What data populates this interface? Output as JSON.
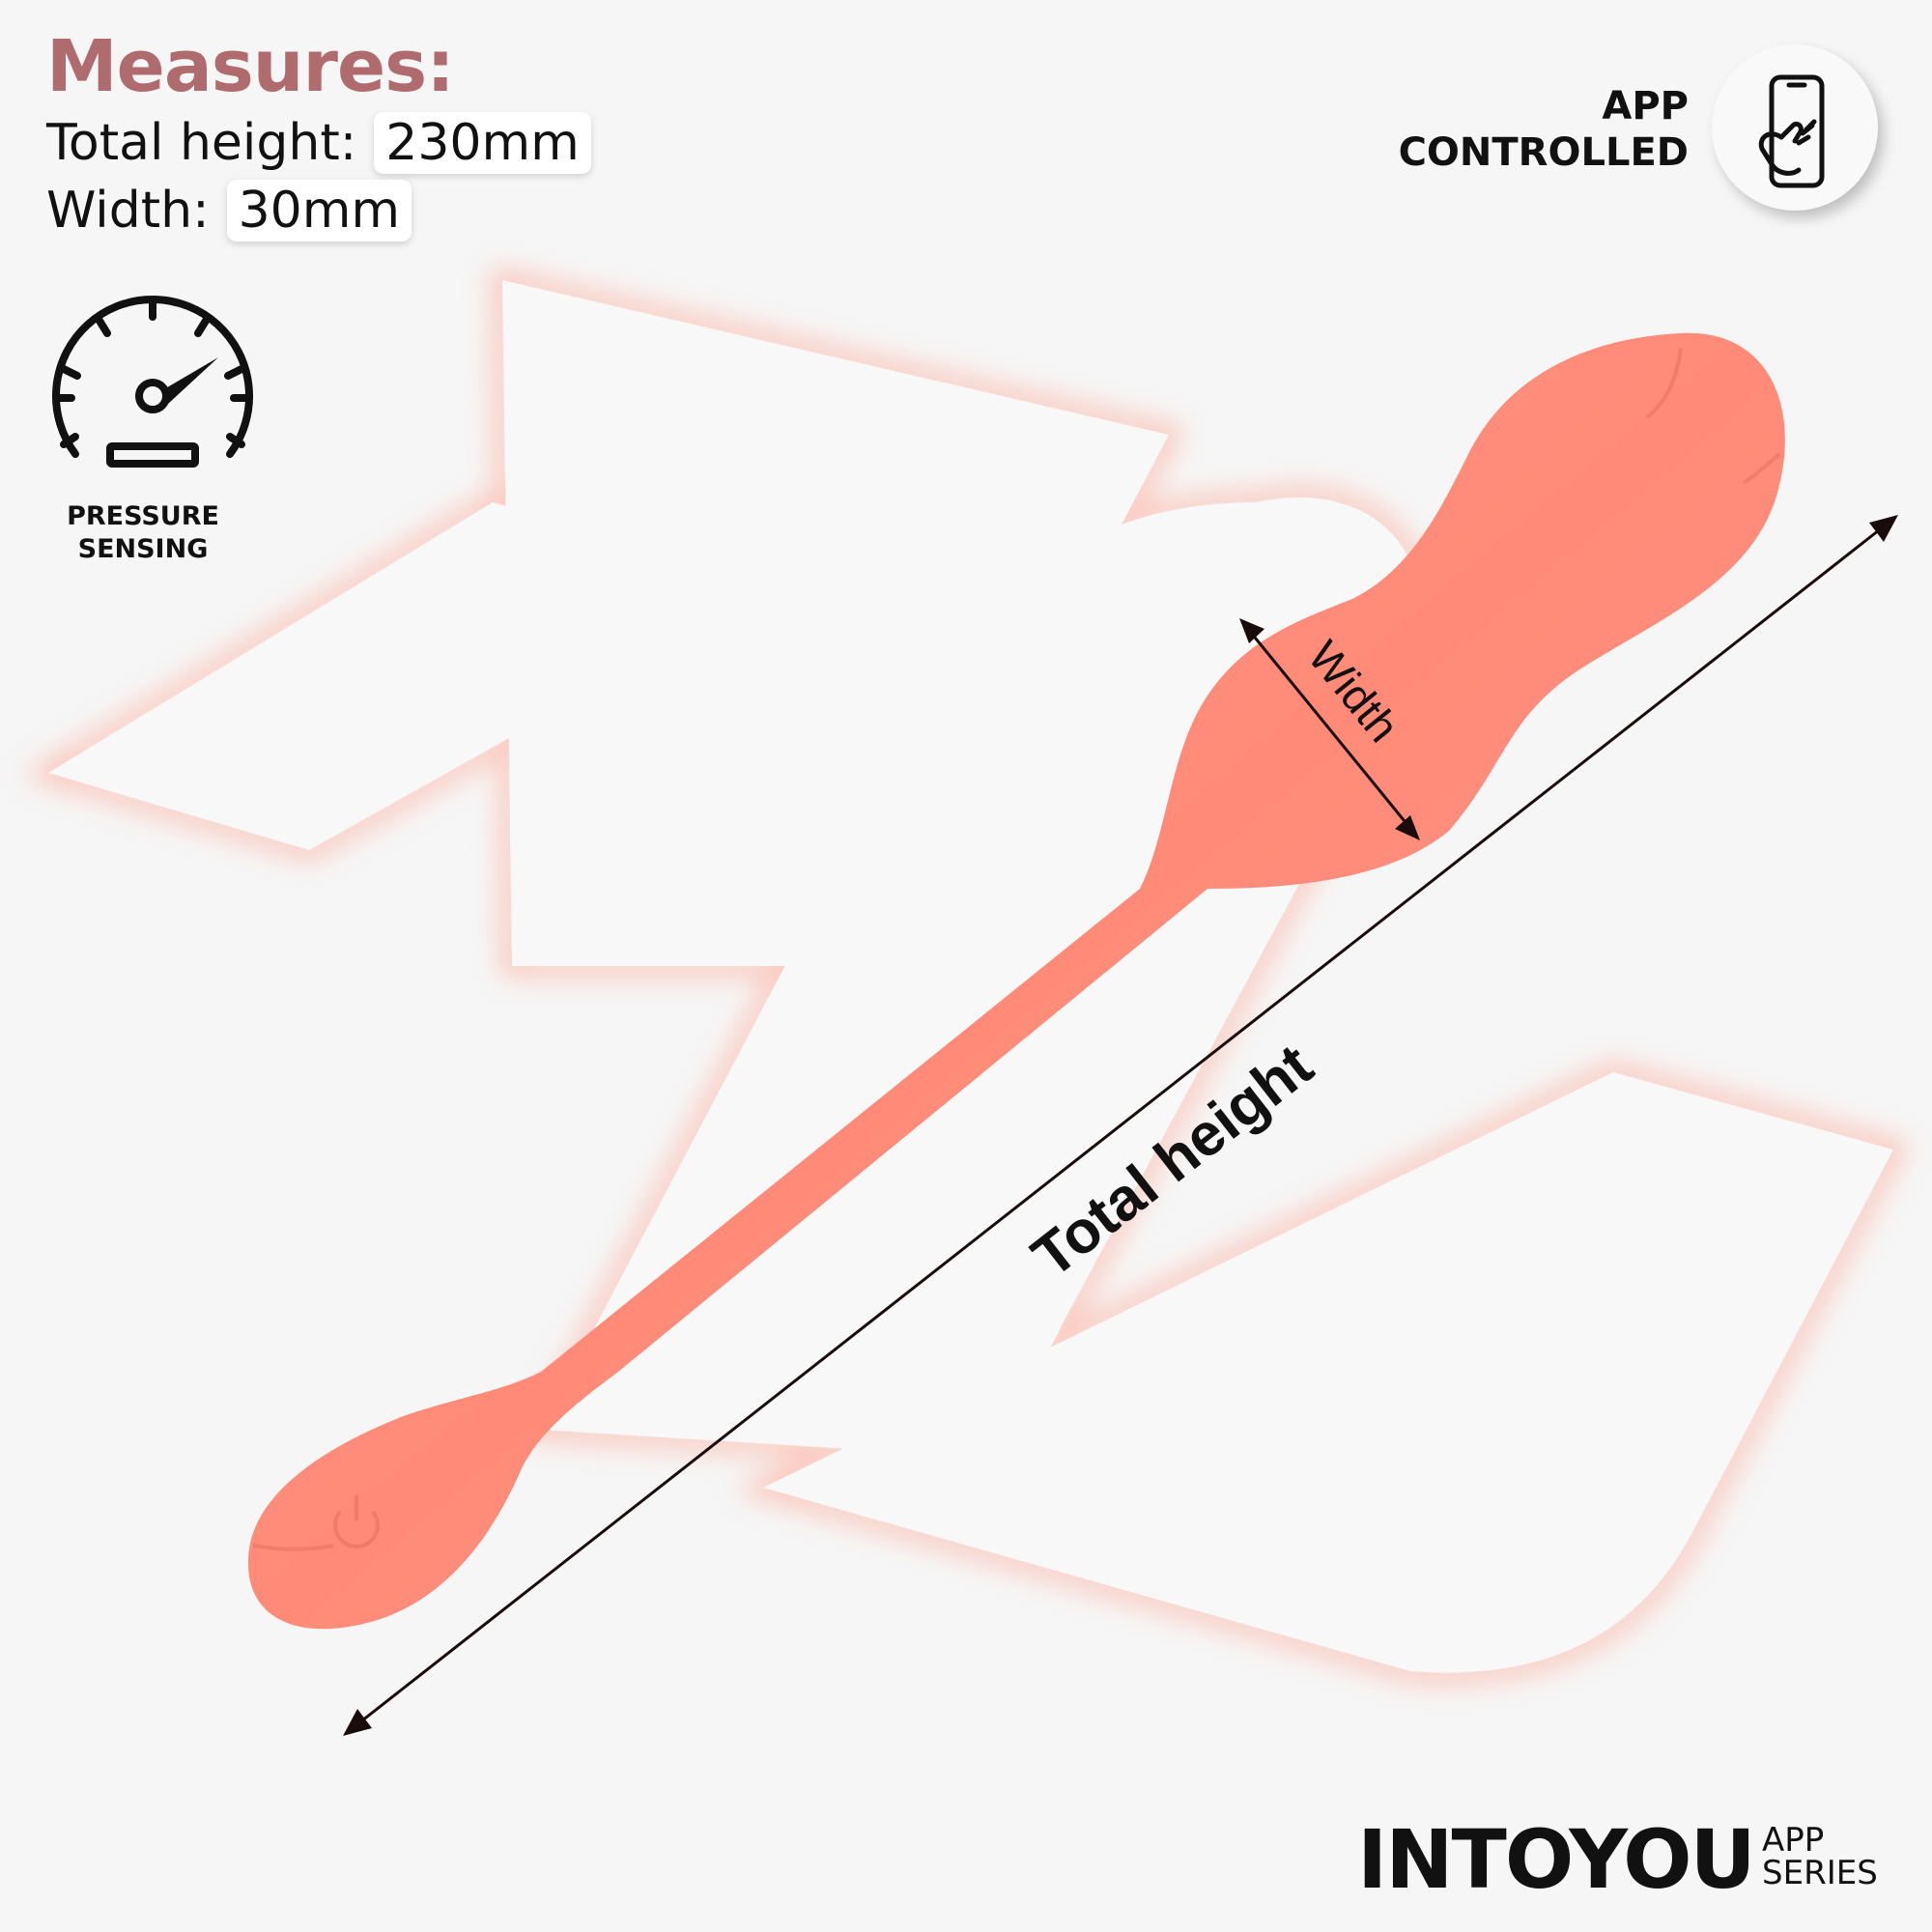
{
  "measures": {
    "title": "Measures:",
    "total_height_label": "Total height:",
    "total_height_value": "230mm",
    "width_label": "Width:",
    "width_value": "30mm"
  },
  "features": {
    "pressure_line1": "PRESSURE",
    "pressure_line2": "SENSING",
    "app_line1": "APP",
    "app_line2": "CONTROLLED"
  },
  "diagram": {
    "width_label": "Width",
    "height_label": "Total height"
  },
  "brand": {
    "name": "INTOYOU",
    "series_line1": "APP",
    "series_line2": "SERIES"
  },
  "icons": {
    "pressure": "gauge-icon",
    "app": "phone-touch-icon",
    "power": "power-icon"
  },
  "colors": {
    "product": "#ff8f7d",
    "title": "#b06b6e",
    "glow": "#ff9f8a"
  }
}
